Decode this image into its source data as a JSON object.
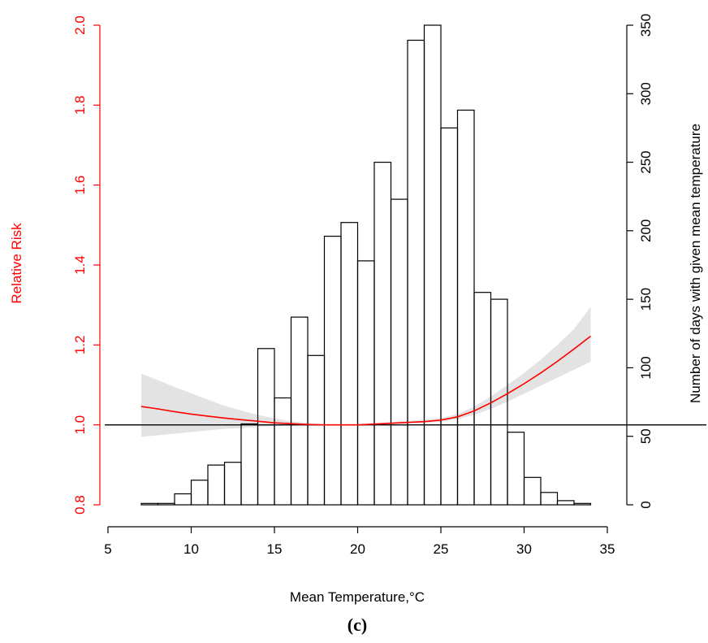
{
  "chart_data": {
    "type": "bar",
    "panel_label": "(c)",
    "xlabel": "Mean Temperature,°C",
    "xlim": [
      5,
      35
    ],
    "x_ticks": [
      5,
      10,
      15,
      20,
      25,
      30,
      35
    ],
    "y_left": {
      "label": "Relative Risk",
      "color": "#ff0000",
      "lim": [
        0.8,
        2.0
      ],
      "ticks": [
        "0.8",
        "1.0",
        "1.2",
        "1.4",
        "1.6",
        "1.8",
        "2.0"
      ]
    },
    "y_right": {
      "label": "Number of days with given mean temperature",
      "lim": [
        0,
        350
      ],
      "ticks": [
        "0",
        "50",
        "100",
        "150",
        "200",
        "250",
        "300",
        "350"
      ]
    },
    "histogram": {
      "bin_start": 7,
      "bin_width": 1,
      "counts": [
        1,
        1,
        8,
        18,
        29,
        31,
        59,
        114,
        78,
        137,
        109,
        196,
        206,
        178,
        250,
        223,
        339,
        350,
        275,
        288,
        155,
        150,
        53,
        20,
        9,
        3,
        1
      ]
    },
    "reference_line": {
      "y": 1.0
    },
    "rr_curve": {
      "color": "#ff0000",
      "x": [
        7,
        8,
        9,
        10,
        11,
        12,
        13,
        14,
        15,
        16,
        17,
        18,
        19,
        20,
        21,
        22,
        23,
        24,
        25,
        26,
        27,
        28,
        29,
        30,
        31,
        32,
        33,
        34
      ],
      "y": [
        1.046,
        1.04,
        1.033,
        1.027,
        1.022,
        1.017,
        1.013,
        1.009,
        1.005,
        1.003,
        1.001,
        1.0,
        1.0,
        1.0,
        1.002,
        1.004,
        1.006,
        1.008,
        1.012,
        1.02,
        1.035,
        1.055,
        1.078,
        1.103,
        1.13,
        1.159,
        1.19,
        1.222
      ],
      "lower": [
        0.97,
        0.974,
        0.978,
        0.982,
        0.986,
        0.99,
        0.992,
        0.995,
        0.997,
        0.998,
        0.999,
        0.999,
        0.999,
        0.999,
        1.0,
        1.002,
        1.004,
        1.005,
        1.008,
        1.014,
        1.025,
        1.04,
        1.058,
        1.078,
        1.098,
        1.118,
        1.138,
        1.158
      ],
      "upper": [
        1.128,
        1.112,
        1.095,
        1.079,
        1.063,
        1.048,
        1.036,
        1.025,
        1.016,
        1.009,
        1.005,
        1.002,
        1.001,
        1.002,
        1.004,
        1.007,
        1.01,
        1.013,
        1.017,
        1.027,
        1.046,
        1.071,
        1.1,
        1.13,
        1.163,
        1.2,
        1.24,
        1.295
      ]
    }
  }
}
